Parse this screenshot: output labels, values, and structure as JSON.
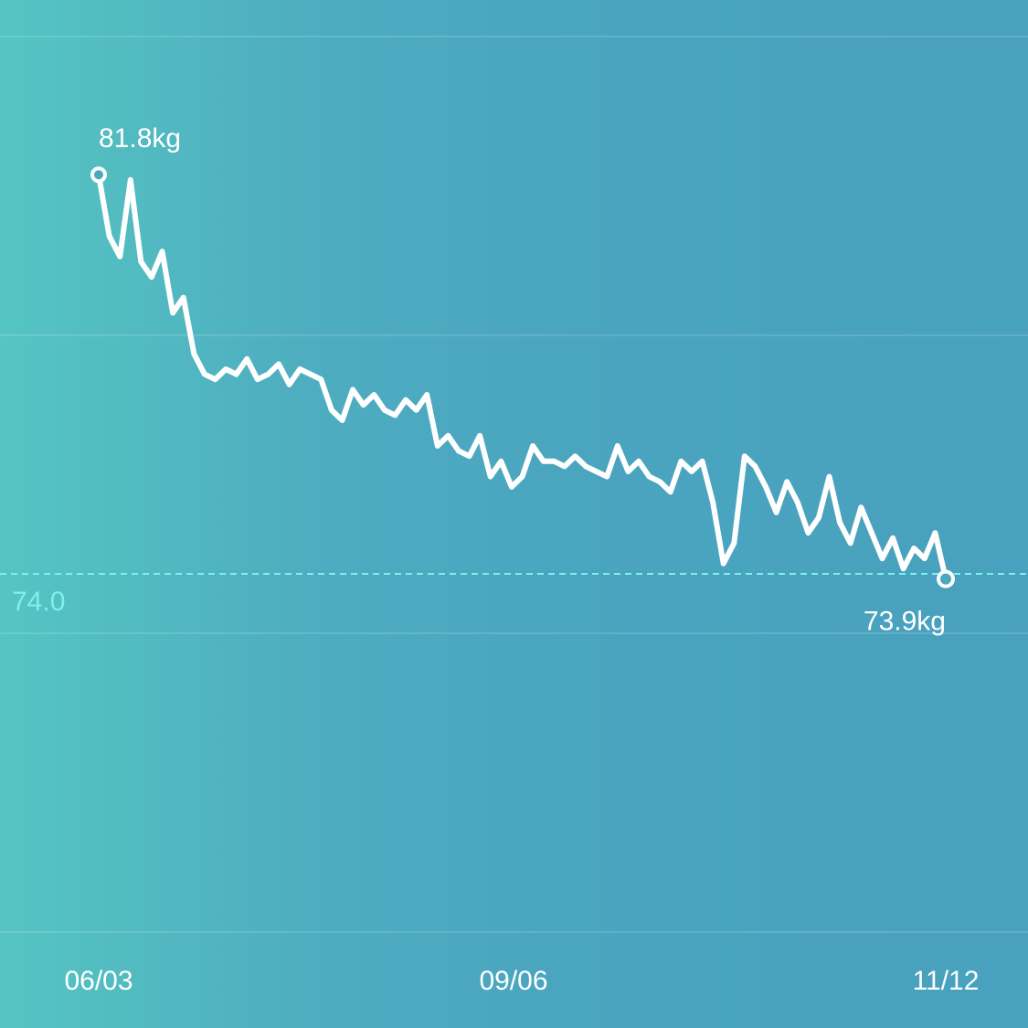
{
  "chart_data": {
    "type": "line",
    "series": [
      {
        "name": "",
        "x": [
          "06/03",
          "06/05",
          "06/07",
          "06/09",
          "06/11",
          "06/13",
          "06/15",
          "06/17",
          "06/19",
          "06/21",
          "06/23",
          "06/25",
          "06/27",
          "06/29",
          "07/01",
          "07/03",
          "07/05",
          "07/07",
          "07/09",
          "07/11",
          "07/13",
          "07/15",
          "07/17",
          "07/19",
          "07/21",
          "07/23",
          "07/25",
          "07/27",
          "07/29",
          "07/31",
          "08/02",
          "08/04",
          "08/06",
          "08/08",
          "08/10",
          "08/12",
          "08/14",
          "08/16",
          "08/18",
          "08/20",
          "08/22",
          "08/24",
          "08/26",
          "08/28",
          "08/30",
          "09/01",
          "09/03",
          "09/06",
          "09/08",
          "09/10",
          "09/12",
          "09/14",
          "09/16",
          "09/18",
          "09/20",
          "09/22",
          "09/24",
          "09/26",
          "09/28",
          "09/30",
          "10/02",
          "10/04",
          "10/06",
          "10/08",
          "10/10",
          "10/12",
          "10/14",
          "10/16",
          "10/18",
          "10/20",
          "10/22",
          "10/24",
          "10/26",
          "10/28",
          "10/30",
          "11/01",
          "11/03",
          "11/05",
          "11/07",
          "11/09",
          "11/12"
        ],
        "values": [
          81.8,
          80.6,
          80.2,
          81.7,
          80.1,
          79.8,
          80.3,
          79.1,
          79.4,
          78.3,
          77.9,
          77.8,
          78.0,
          77.9,
          78.2,
          77.8,
          77.9,
          78.1,
          77.7,
          78.0,
          77.9,
          77.8,
          77.2,
          77.0,
          77.6,
          77.3,
          77.5,
          77.2,
          77.1,
          77.4,
          77.2,
          77.5,
          76.5,
          76.7,
          76.4,
          76.3,
          76.7,
          75.9,
          76.2,
          75.7,
          75.9,
          76.5,
          76.2,
          76.2,
          76.1,
          76.3,
          76.1,
          76.0,
          75.9,
          76.5,
          76.0,
          76.2,
          75.9,
          75.8,
          75.6,
          76.2,
          76.0,
          76.2,
          75.4,
          74.2,
          74.6,
          76.3,
          76.1,
          75.7,
          75.2,
          75.8,
          75.4,
          74.8,
          75.1,
          75.9,
          75.0,
          74.6,
          75.3,
          74.8,
          74.3,
          74.7,
          74.1,
          74.5,
          74.3,
          74.8,
          73.9
        ]
      }
    ],
    "x_ticks": [
      "06/03",
      "09/06",
      "11/12"
    ],
    "goal": 74.0,
    "goal_label": "74.0",
    "start_label": "81.8kg",
    "end_label": "73.9kg",
    "ylim": [
      67.0,
      84.5
    ],
    "grid": "horizontal",
    "colors": {
      "line": "#ffffff",
      "goal": "#7ff0ea",
      "gradient_left": "#55c5c2",
      "gradient_right": "#48a1be"
    }
  }
}
